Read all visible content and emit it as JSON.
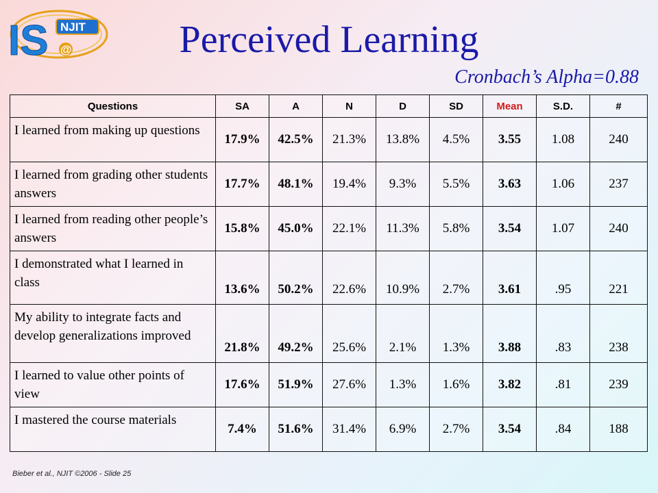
{
  "title": "Perceived Learning",
  "subtitle": "Cronbach’s Alpha=0.88",
  "logo": {
    "letters": "IS",
    "badge": "NJIT",
    "at_symbol": "@"
  },
  "table": {
    "headers": [
      "Questions",
      "SA",
      "A",
      "N",
      "D",
      "SD",
      "Mean",
      "S.D.",
      "#"
    ],
    "rows": [
      {
        "q": "I learned from making up questions",
        "sa": "17.9%",
        "a": "42.5%",
        "n": "21.3%",
        "d": "13.8%",
        "sd": "4.5%",
        "mean": "3.55",
        "std": "1.08",
        "count": "240"
      },
      {
        "q": "I learned from grading other students answers",
        "sa": "17.7%",
        "a": "48.1%",
        "n": "19.4%",
        "d": "9.3%",
        "sd": "5.5%",
        "mean": "3.63",
        "std": "1.06",
        "count": "237"
      },
      {
        "q": "I learned from reading other people’s answers",
        "sa": "15.8%",
        "a": "45.0%",
        "n": "22.1%",
        "d": "11.3%",
        "sd": "5.8%",
        "mean": "3.54",
        "std": "1.07",
        "count": "240"
      },
      {
        "q": "I demonstrated what I learned in class",
        "sa": "13.6%",
        "a": "50.2%",
        "n": "22.6%",
        "d": "10.9%",
        "sd": "2.7%",
        "mean": "3.61",
        "std": ".95",
        "count": "221"
      },
      {
        "q": "My ability to integrate facts and develop generalizations improved",
        "sa": "21.8%",
        "a": "49.2%",
        "n": "25.6%",
        "d": "2.1%",
        "sd": "1.3%",
        "mean": "3.88",
        "std": ".83",
        "count": "238"
      },
      {
        "q": "I learned to value other points of view",
        "sa": "17.6%",
        "a": "51.9%",
        "n": "27.6%",
        "d": "1.3%",
        "sd": "1.6%",
        "mean": "3.82",
        "std": ".81",
        "count": "239"
      },
      {
        "q": "I mastered the course materials",
        "sa": "7.4%",
        "a": "51.6%",
        "n": "31.4%",
        "d": "6.9%",
        "sd": "2.7%",
        "mean": "3.54",
        "std": ".84",
        "count": "188"
      }
    ]
  },
  "footer": "Bieber et al., NJIT ©2006 - Slide 25",
  "colors": {
    "title": "#1a1aa8",
    "highlight_blue": "#1a1aa8",
    "mean_red": "#d41b1b"
  }
}
